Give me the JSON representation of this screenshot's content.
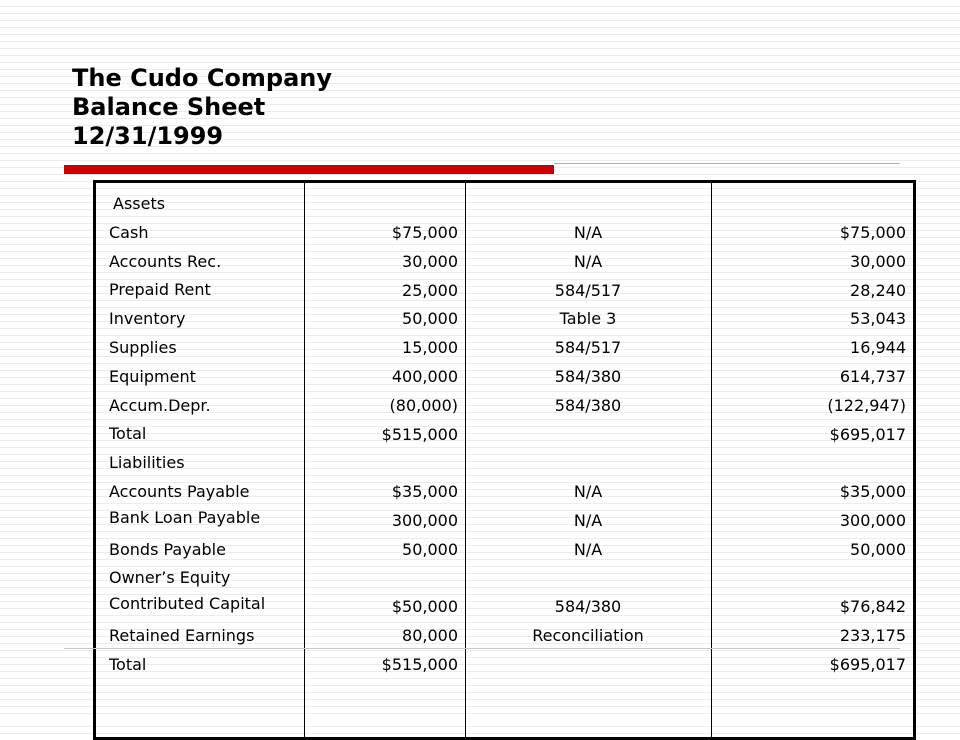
{
  "colors": {
    "accent": "#cc0000",
    "accent_line": "#b0b0b0",
    "text": "#000000",
    "border": "#000000"
  },
  "title": {
    "line1": "The Cudo Company",
    "line2": "Balance Sheet",
    "line3": "12/31/1999"
  },
  "table": {
    "labels": [
      "Assets",
      "Cash",
      "Accounts Rec.",
      "Prepaid Rent",
      "Inventory",
      "Supplies",
      "Equipment",
      "Accum.Depr.",
      "Total",
      "Liabilities",
      "Accounts Payable",
      "Bank Loan Payable",
      "Bonds Payable",
      "Owner’s Equity",
      "Contributed Capital",
      "Retained Earnings",
      "Total"
    ],
    "book_values": [
      "$75,000",
      "30,000",
      "25,000",
      "50,000",
      "15,000",
      "400,000",
      "(80,000)",
      "$515,000",
      "$35,000",
      "300,000",
      "50,000",
      "$50,000",
      "80,000",
      "$515,000"
    ],
    "references": [
      "N/A",
      "N/A",
      "584/517",
      "Table 3",
      "584/517",
      "584/380",
      "584/380",
      "",
      "N/A",
      "N/A",
      "N/A",
      "584/380",
      "Reconciliation",
      ""
    ],
    "adjusted_values": [
      "$75,000",
      "30,000",
      "28,240",
      "53,043",
      "16,944",
      "614,737",
      "(122,947)",
      "$695,017",
      "$35,000",
      "300,000",
      "50,000",
      "$76,842",
      "233,175",
      "$695,017"
    ]
  }
}
